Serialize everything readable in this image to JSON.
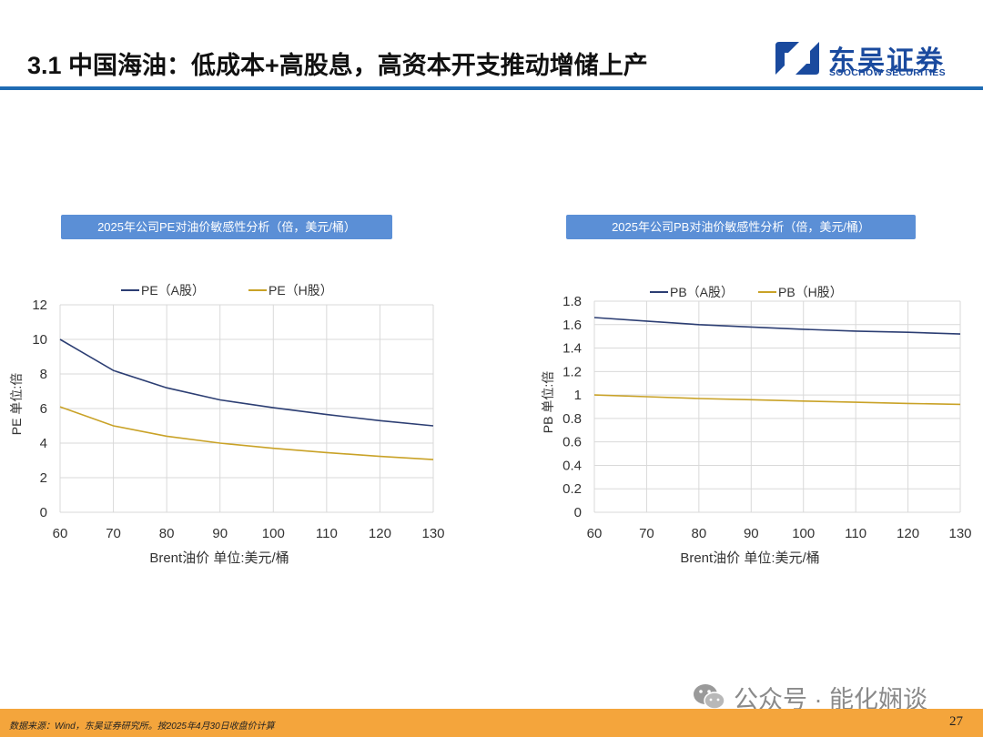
{
  "header": {
    "title": "3.1 中国海油：低成本+高股息，高资本开支推动增储上产",
    "rule_color": "#1f6bb3"
  },
  "logo": {
    "cn": "东吴证券",
    "en": "SOOCHOW SECURITIES",
    "color": "#1a4a9e",
    "icon": "soochow-logo-icon"
  },
  "charts_meta": {
    "banner_color": "#5b8fd6",
    "series_colors": [
      "#2c3e73",
      "#c9a227"
    ]
  },
  "chart_data": [
    {
      "type": "line",
      "banner_title": "2025年公司PE对油价敏感性分析（倍，美元/桶）",
      "xlabel": "Brent油价  单位:美元/桶",
      "ylabel": "PE  单位:倍",
      "x": [
        60,
        70,
        80,
        90,
        100,
        110,
        120,
        130
      ],
      "xlim": [
        60,
        130
      ],
      "ylim": [
        0,
        12
      ],
      "yticks": [
        "0",
        "2",
        "4",
        "6",
        "8",
        "10",
        "12"
      ],
      "xticks": [
        "60",
        "70",
        "80",
        "90",
        "100",
        "110",
        "120",
        "130"
      ],
      "grid": true,
      "legend_position": "top",
      "series": [
        {
          "name": "PE（A股）",
          "values": [
            10.0,
            8.2,
            7.2,
            6.5,
            6.05,
            5.65,
            5.3,
            5.0
          ]
        },
        {
          "name": "PE（H股）",
          "values": [
            6.1,
            5.0,
            4.4,
            4.0,
            3.7,
            3.45,
            3.23,
            3.05
          ]
        }
      ]
    },
    {
      "type": "line",
      "banner_title": "2025年公司PB对油价敏感性分析（倍，美元/桶）",
      "xlabel": "Brent油价  单位:美元/桶",
      "ylabel": "PB  单位:倍",
      "x": [
        60,
        70,
        80,
        90,
        100,
        110,
        120,
        130
      ],
      "xlim": [
        60,
        130
      ],
      "ylim": [
        0,
        1.8
      ],
      "yticks": [
        "0",
        "0.2",
        "0.4",
        "0.6",
        "0.8",
        "1",
        "1.2",
        "1.4",
        "1.6",
        "1.8"
      ],
      "xticks": [
        "60",
        "70",
        "80",
        "90",
        "100",
        "110",
        "120",
        "130"
      ],
      "grid": true,
      "legend_position": "top",
      "series": [
        {
          "name": "PB（A股）",
          "values": [
            1.66,
            1.63,
            1.6,
            1.58,
            1.56,
            1.545,
            1.535,
            1.52
          ]
        },
        {
          "name": "PB（H股）",
          "values": [
            1.0,
            0.985,
            0.97,
            0.96,
            0.948,
            0.938,
            0.928,
            0.92
          ]
        }
      ]
    }
  ],
  "watermark": {
    "text": "公众号 · 能化娴谈",
    "icon": "wechat-icon"
  },
  "footer": {
    "source": "数据来源：Wind，东吴证券研究所。按2025年4月30日收盘价计算",
    "page_number": "27",
    "bar_color": "#f4a53c"
  }
}
